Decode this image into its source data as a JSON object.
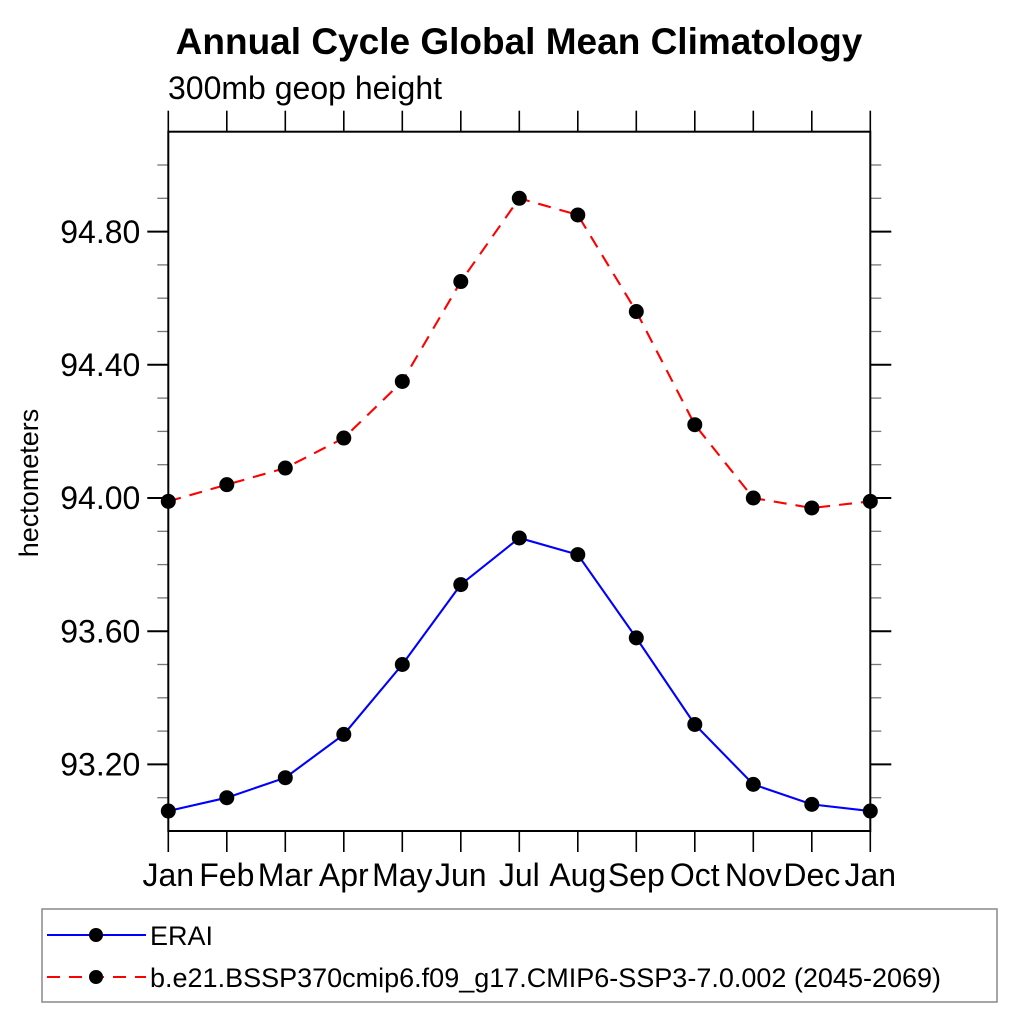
{
  "chart_data": {
    "type": "line",
    "title": "Annual Cycle Global Mean Climatology",
    "subtitle": "300mb geop height",
    "ylabel": "hectometers",
    "xlabel": "",
    "x_categories": [
      "Jan",
      "Feb",
      "Mar",
      "Apr",
      "May",
      "Jun",
      "Jul",
      "Aug",
      "Sep",
      "Oct",
      "Nov",
      "Dec",
      "Jan"
    ],
    "ylim": [
      93.0,
      95.1
    ],
    "ytick_major": [
      93.2,
      93.6,
      94.0,
      94.4,
      94.8
    ],
    "ytick_major_labels": [
      "93.20",
      "93.60",
      "94.00",
      "94.40",
      "94.80"
    ],
    "ytick_minor_step": 0.1,
    "grid": false,
    "legend_position": "bottom",
    "marker": "filled-circle",
    "marker_color": "#000000",
    "series": [
      {
        "name": "ERAI",
        "color": "#0000ff",
        "line_style": "solid",
        "values": [
          93.06,
          93.1,
          93.16,
          93.29,
          93.5,
          93.74,
          93.88,
          93.83,
          93.58,
          93.32,
          93.14,
          93.08,
          93.06
        ]
      },
      {
        "name": "b.e21.BSSP370cmip6.f09_g17.CMIP6-SSP3-7.0.002 (2045-2069)",
        "color": "#ff0000",
        "line_style": "dashed",
        "values": [
          93.99,
          94.04,
          94.09,
          94.18,
          94.35,
          94.65,
          94.9,
          94.85,
          94.56,
          94.22,
          94.0,
          93.97,
          93.99
        ]
      }
    ]
  },
  "colors": {
    "frame": "#000000",
    "minor_tick": "#777777",
    "legend_border": "#888888"
  }
}
